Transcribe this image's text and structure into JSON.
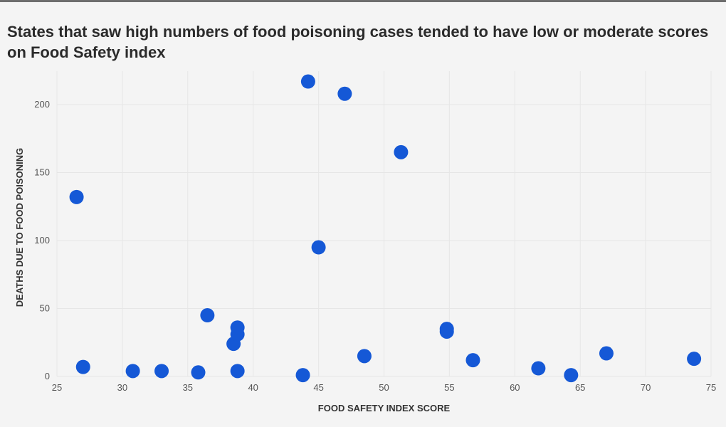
{
  "chart_data": {
    "type": "scatter",
    "title": "States that saw high numbers of food poisoning cases tended to have low or moderate scores on Food Safety index",
    "xlabel": "FOOD SAFETY INDEX SCORE",
    "ylabel": "DEATHS DUE TO FOOD POISONING",
    "xlim": [
      25,
      75
    ],
    "ylim": [
      0,
      220
    ],
    "x_ticks": [
      25,
      30,
      35,
      40,
      45,
      50,
      55,
      60,
      65,
      70,
      75
    ],
    "y_ticks": [
      0,
      50,
      100,
      150,
      200
    ],
    "grid": true,
    "point_color": "#1558d6",
    "series": [
      {
        "points": [
          {
            "x": 26.5,
            "y": 132
          },
          {
            "x": 27.0,
            "y": 7
          },
          {
            "x": 30.8,
            "y": 4
          },
          {
            "x": 33.0,
            "y": 4
          },
          {
            "x": 35.8,
            "y": 3
          },
          {
            "x": 36.5,
            "y": 45
          },
          {
            "x": 38.5,
            "y": 24
          },
          {
            "x": 38.8,
            "y": 31
          },
          {
            "x": 38.8,
            "y": 36
          },
          {
            "x": 38.8,
            "y": 4
          },
          {
            "x": 43.8,
            "y": 1
          },
          {
            "x": 44.2,
            "y": 217
          },
          {
            "x": 45.0,
            "y": 95
          },
          {
            "x": 47.0,
            "y": 208
          },
          {
            "x": 48.5,
            "y": 15
          },
          {
            "x": 51.3,
            "y": 165
          },
          {
            "x": 54.8,
            "y": 33
          },
          {
            "x": 54.8,
            "y": 35
          },
          {
            "x": 56.8,
            "y": 12
          },
          {
            "x": 61.8,
            "y": 6
          },
          {
            "x": 64.3,
            "y": 1
          },
          {
            "x": 67.0,
            "y": 17
          },
          {
            "x": 73.7,
            "y": 13
          }
        ]
      }
    ]
  }
}
